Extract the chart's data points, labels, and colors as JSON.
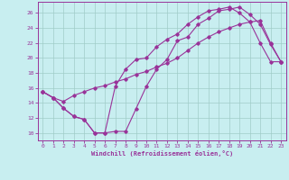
{
  "xlabel": "Windchill (Refroidissement éolien,°C)",
  "xlim": [
    -0.5,
    23.5
  ],
  "ylim": [
    9.0,
    27.5
  ],
  "xticks": [
    0,
    1,
    2,
    3,
    4,
    5,
    6,
    7,
    8,
    9,
    10,
    11,
    12,
    13,
    14,
    15,
    16,
    17,
    18,
    19,
    20,
    21,
    22,
    23
  ],
  "yticks": [
    10,
    12,
    14,
    16,
    18,
    20,
    22,
    24,
    26
  ],
  "bg_color": "#c8eef0",
  "line_color": "#993399",
  "grid_color": "#a0ccc8",
  "line1_x": [
    0,
    1,
    2,
    3,
    4,
    5,
    6,
    7,
    8,
    9,
    10,
    11,
    12,
    13,
    14,
    15,
    16,
    17,
    18,
    19,
    20,
    21,
    22,
    23
  ],
  "line1_y": [
    15.5,
    14.7,
    13.3,
    12.2,
    11.8,
    10.0,
    10.0,
    10.2,
    10.2,
    13.2,
    16.2,
    18.5,
    19.8,
    22.3,
    22.8,
    24.5,
    25.3,
    26.3,
    26.5,
    26.8,
    25.8,
    24.5,
    21.8,
    19.5
  ],
  "line2_x": [
    0,
    1,
    2,
    3,
    4,
    5,
    6,
    7,
    8,
    9,
    10,
    11,
    12,
    13,
    14,
    15,
    16,
    17,
    18,
    19,
    20,
    21,
    22,
    23
  ],
  "line2_y": [
    15.5,
    14.7,
    13.3,
    12.2,
    11.8,
    10.0,
    10.0,
    16.2,
    18.5,
    19.8,
    20.0,
    21.5,
    22.5,
    23.2,
    24.5,
    25.5,
    26.3,
    26.5,
    26.8,
    26.0,
    24.8,
    22.0,
    19.5,
    19.5
  ],
  "line3_x": [
    0,
    1,
    2,
    3,
    4,
    5,
    6,
    7,
    8,
    9,
    10,
    11,
    12,
    13,
    14,
    15,
    16,
    17,
    18,
    19,
    20,
    21,
    22,
    23
  ],
  "line3_y": [
    15.5,
    14.7,
    14.2,
    15.0,
    15.5,
    16.0,
    16.3,
    16.8,
    17.2,
    17.8,
    18.2,
    18.8,
    19.3,
    20.0,
    21.0,
    22.0,
    22.8,
    23.5,
    24.0,
    24.5,
    24.8,
    25.0,
    22.0,
    19.5
  ]
}
